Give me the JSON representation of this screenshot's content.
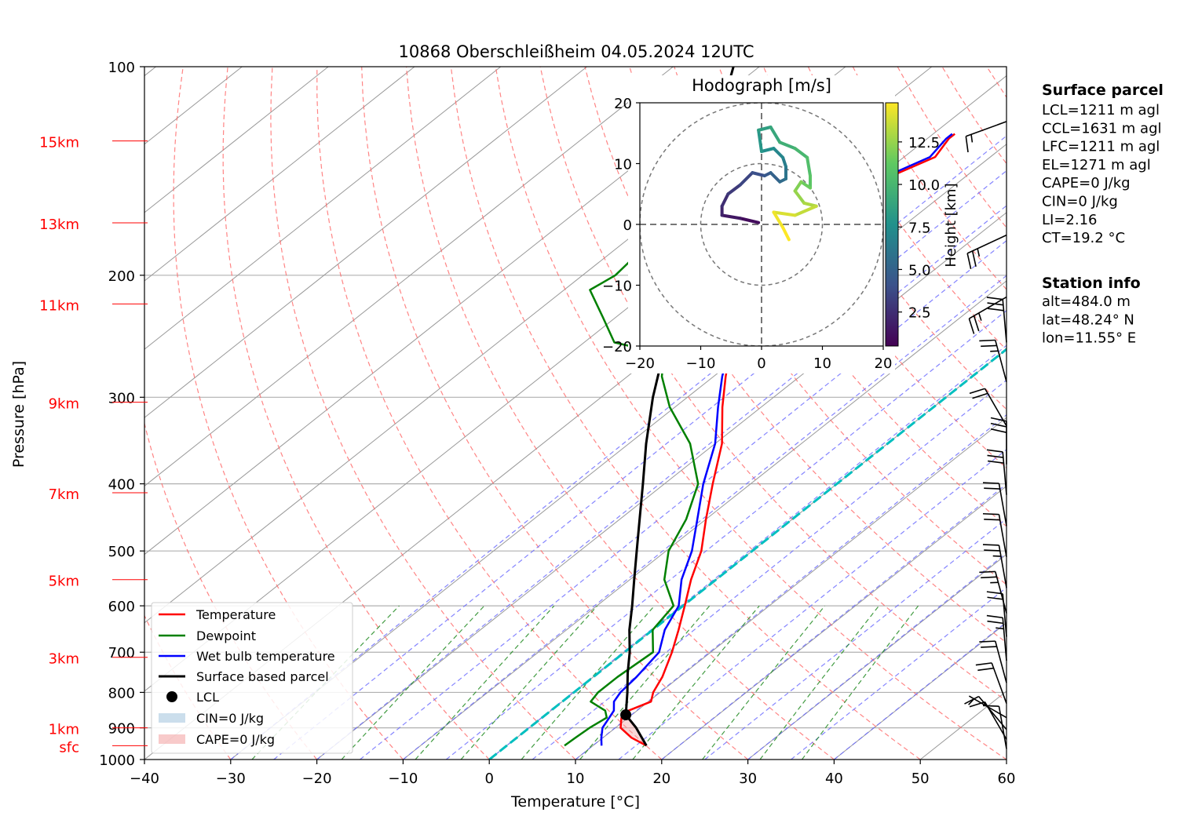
{
  "title": "10868 Oberschleißheim 04.05.2024 12UTC",
  "colors": {
    "temperature": "#ff0000",
    "dewpoint": "#008000",
    "wetbulb": "#0000ff",
    "parcel": "#000000",
    "isotherm": "#999999",
    "dry_adiabat": "#ff6666",
    "moist_adiabat": "#6666ff",
    "mixing_ratio": "#228b22",
    "freezing": "#00bfbf",
    "cin": "#a9c8e0",
    "cape": "#f4a6a6",
    "height_labels": "#ff0000"
  },
  "chart_data": [
    {
      "type": "line",
      "subtype": "skew-T log-p diagram",
      "title": "10868 Oberschleißheim 04.05.2024 12UTC",
      "xlabel": "Temperature [°C]",
      "ylabel": "Pressure [hPa]",
      "xlim": [
        -40,
        60
      ],
      "ylim": [
        1000,
        100
      ],
      "y_scale": "log",
      "x_ticks": [
        "−40",
        "−30",
        "−20",
        "−10",
        "0",
        "10",
        "20",
        "30",
        "40",
        "50",
        "60"
      ],
      "y_ticks": [
        "100",
        "200",
        "300",
        "400",
        "500",
        "600",
        "700",
        "800",
        "900",
        "1000"
      ],
      "height_labels": [
        {
          "label": "15km",
          "p": 128
        },
        {
          "label": "13km",
          "p": 168
        },
        {
          "label": "11km",
          "p": 220
        },
        {
          "label": "9km",
          "p": 305
        },
        {
          "label": "7km",
          "p": 412
        },
        {
          "label": "5km",
          "p": 550
        },
        {
          "label": "3km",
          "p": 712
        },
        {
          "label": "1km",
          "p": 900
        },
        {
          "label": "sfc",
          "p": 955
        }
      ],
      "legend": {
        "position": "lower-left",
        "entries": [
          "Temperature",
          "Dewpoint",
          "Wet bulb temperature",
          "Surface based parcel",
          "LCL",
          "CIN=0 J/kg",
          "CAPE=0 J/kg"
        ]
      },
      "series": [
        {
          "name": "Temperature",
          "points": [
            [
              16.2,
              955
            ],
            [
              13.3,
              930
            ],
            [
              10.6,
              900
            ],
            [
              9.2,
              870
            ],
            [
              9.0,
              850
            ],
            [
              10.3,
              825
            ],
            [
              9.2,
              800
            ],
            [
              8.0,
              760
            ],
            [
              5.5,
              700
            ],
            [
              3.0,
              650
            ],
            [
              0.2,
              600
            ],
            [
              -2.9,
              550
            ],
            [
              -5.9,
              500
            ],
            [
              -10.0,
              450
            ],
            [
              -14.4,
              400
            ],
            [
              -19.2,
              350
            ],
            [
              -24.5,
              310
            ],
            [
              -28.6,
              280
            ],
            [
              -32.9,
              250
            ],
            [
              -35.3,
              230
            ],
            [
              -37.8,
              210
            ],
            [
              -38.0,
              200
            ],
            [
              -39.5,
              185
            ],
            [
              -41.0,
              170
            ],
            [
              -40.0,
              155
            ],
            [
              -39.0,
              145
            ],
            [
              -36.4,
              135
            ],
            [
              -37.5,
              127
            ],
            [
              -37.5,
              125
            ]
          ]
        },
        {
          "name": "Dewpoint",
          "points": [
            [
              6.7,
              955
            ],
            [
              6.8,
              930
            ],
            [
              7.0,
              900
            ],
            [
              7.5,
              870
            ],
            [
              6.3,
              850
            ],
            [
              3.3,
              825
            ],
            [
              2.8,
              800
            ],
            [
              2.8,
              760
            ],
            [
              3.3,
              700
            ],
            [
              0.0,
              650
            ],
            [
              -1.1,
              600
            ],
            [
              -6.0,
              550
            ],
            [
              -9.7,
              500
            ],
            [
              -12.3,
              450
            ],
            [
              -16.1,
              400
            ],
            [
              -22.9,
              350
            ],
            [
              -30.6,
              310
            ],
            [
              -36.0,
              280
            ],
            [
              -39.0,
              260
            ],
            [
              -46.5,
              250
            ],
            [
              -51.5,
              230
            ],
            [
              -57.0,
              210
            ],
            [
              -56.2,
              200
            ],
            [
              -56.8,
              185
            ],
            [
              -59.0,
              170
            ],
            [
              -59.0,
              155
            ],
            [
              -60.0,
              145
            ],
            [
              -59.0,
              135
            ],
            [
              -60.0,
              127
            ],
            [
              -59.2,
              125
            ]
          ]
        },
        {
          "name": "Wet bulb temperature",
          "points": [
            [
              11.0,
              955
            ],
            [
              9.8,
              930
            ],
            [
              8.5,
              900
            ],
            [
              7.8,
              870
            ],
            [
              7.3,
              850
            ],
            [
              6.0,
              825
            ],
            [
              5.4,
              800
            ],
            [
              5.0,
              760
            ],
            [
              4.0,
              700
            ],
            [
              1.4,
              650
            ],
            [
              -0.5,
              600
            ],
            [
              -4.0,
              550
            ],
            [
              -7.0,
              500
            ],
            [
              -11.0,
              450
            ],
            [
              -15.5,
              400
            ],
            [
              -20.0,
              350
            ],
            [
              -25.0,
              310
            ],
            [
              -29.0,
              280
            ],
            [
              -33.0,
              250
            ],
            [
              -35.8,
              230
            ],
            [
              -38.5,
              210
            ],
            [
              -38.6,
              200
            ],
            [
              -40.3,
              185
            ],
            [
              -41.6,
              170
            ],
            [
              -40.6,
              155
            ],
            [
              -39.5,
              145
            ],
            [
              -37.0,
              135
            ],
            [
              -37.8,
              127
            ],
            [
              -37.8,
              125
            ]
          ]
        },
        {
          "name": "Surface based parcel",
          "points": [
            [
              16.2,
              955
            ],
            [
              12.4,
              900
            ],
            [
              9.3,
              862
            ],
            [
              6.2,
              800
            ],
            [
              3.4,
              750
            ],
            [
              0.6,
              700
            ],
            [
              -2.7,
              650
            ],
            [
              -5.9,
              600
            ],
            [
              -9.5,
              550
            ],
            [
              -13.4,
              500
            ],
            [
              -17.7,
              450
            ],
            [
              -22.5,
              400
            ],
            [
              -28.0,
              350
            ],
            [
              -34.0,
              300
            ],
            [
              -40.5,
              250
            ],
            [
              -48.0,
              200
            ],
            [
              -56.0,
              160
            ],
            [
              -64.0,
              130
            ],
            [
              -73.0,
              100
            ]
          ]
        }
      ],
      "lcl": {
        "temperature": 9.3,
        "pressure": 862
      },
      "freezing_level_isotherm": 0
    },
    {
      "type": "scatter",
      "subtype": "hodograph",
      "title": "Hodograph [m/s]",
      "xlim": [
        -20,
        20
      ],
      "ylim": [
        -20,
        20
      ],
      "x_ticks": [
        "−20",
        "−10",
        "0",
        "10",
        "20"
      ],
      "y_ticks": [
        "−20",
        "−10",
        "0",
        "10",
        "20"
      ],
      "rings": [
        10,
        20
      ],
      "colorbar": {
        "label": "Height [km]",
        "ticks": [
          "2.5",
          "5.0",
          "7.5",
          "10.0",
          "12.5"
        ],
        "range": [
          0.5,
          14.8
        ]
      },
      "points_u_v_height": [
        [
          -0.5,
          0.3,
          0.5
        ],
        [
          -3.5,
          1.0,
          1.0
        ],
        [
          -6.5,
          1.5,
          1.5
        ],
        [
          -6.5,
          3.0,
          2.0
        ],
        [
          -5.5,
          5.0,
          2.5
        ],
        [
          -3.5,
          6.5,
          3.0
        ],
        [
          -1.5,
          8.5,
          3.5
        ],
        [
          0.5,
          8.0,
          4.0
        ],
        [
          1.5,
          8.5,
          4.5
        ],
        [
          3.0,
          7.0,
          5.0
        ],
        [
          4.0,
          7.5,
          5.5
        ],
        [
          4.0,
          9.5,
          6.0
        ],
        [
          3.5,
          11.0,
          6.5
        ],
        [
          2.0,
          12.5,
          7.0
        ],
        [
          0.0,
          12.0,
          7.5
        ],
        [
          -0.5,
          15.5,
          8.0
        ],
        [
          1.5,
          16.0,
          8.5
        ],
        [
          3.0,
          13.5,
          9.0
        ],
        [
          5.5,
          12.5,
          9.5
        ],
        [
          7.5,
          11.0,
          10.0
        ],
        [
          8.0,
          8.0,
          10.5
        ],
        [
          8.0,
          6.0,
          11.0
        ],
        [
          6.5,
          7.0,
          11.5
        ],
        [
          5.5,
          5.5,
          12.0
        ],
        [
          7.0,
          3.5,
          12.5
        ],
        [
          9.0,
          3.0,
          13.0
        ],
        [
          5.5,
          1.5,
          13.5
        ],
        [
          2.0,
          2.0,
          14.0
        ],
        [
          3.5,
          -0.5,
          14.5
        ],
        [
          4.5,
          -2.5,
          14.8
        ]
      ]
    }
  ],
  "wind_barbs": [
    {
      "p": 120,
      "speed": 15,
      "dir": 250
    },
    {
      "p": 175,
      "speed": 25,
      "dir": 245
    },
    {
      "p": 215,
      "speed": 25,
      "dir": 240
    },
    {
      "p": 250,
      "speed": 30,
      "dir": 355
    },
    {
      "p": 285,
      "speed": 25,
      "dir": 345
    },
    {
      "p": 330,
      "speed": 20,
      "dir": 330
    },
    {
      "p": 375,
      "speed": 30,
      "dir": 360
    },
    {
      "p": 415,
      "speed": 30,
      "dir": 355
    },
    {
      "p": 460,
      "speed": 20,
      "dir": 350
    },
    {
      "p": 510,
      "speed": 20,
      "dir": 350
    },
    {
      "p": 565,
      "speed": 25,
      "dir": 350
    },
    {
      "p": 615,
      "speed": 25,
      "dir": 345
    },
    {
      "p": 665,
      "speed": 20,
      "dir": 355
    },
    {
      "p": 720,
      "speed": 25,
      "dir": 355
    },
    {
      "p": 775,
      "speed": 20,
      "dir": 345
    },
    {
      "p": 830,
      "speed": 20,
      "dir": 340
    },
    {
      "p": 870,
      "speed": 5,
      "dir": 300
    },
    {
      "p": 905,
      "speed": 10,
      "dir": 320
    },
    {
      "p": 935,
      "speed": 10,
      "dir": 330
    },
    {
      "p": 965,
      "speed": 10,
      "dir": 350
    }
  ],
  "side_panel": {
    "surface_parcel_heading": "Surface parcel",
    "surface_parcel_lines": [
      "LCL=1211 m agl",
      "CCL=1631 m agl",
      "LFC=1211 m agl",
      "EL=1271 m agl",
      "CAPE=0 J/kg",
      "CIN=0 J/kg",
      "LI=2.16",
      "CT=19.2 °C"
    ],
    "station_heading": "Station info",
    "station_lines": [
      "alt=484.0 m",
      "lat=48.24° N",
      "lon=11.55° E"
    ]
  }
}
